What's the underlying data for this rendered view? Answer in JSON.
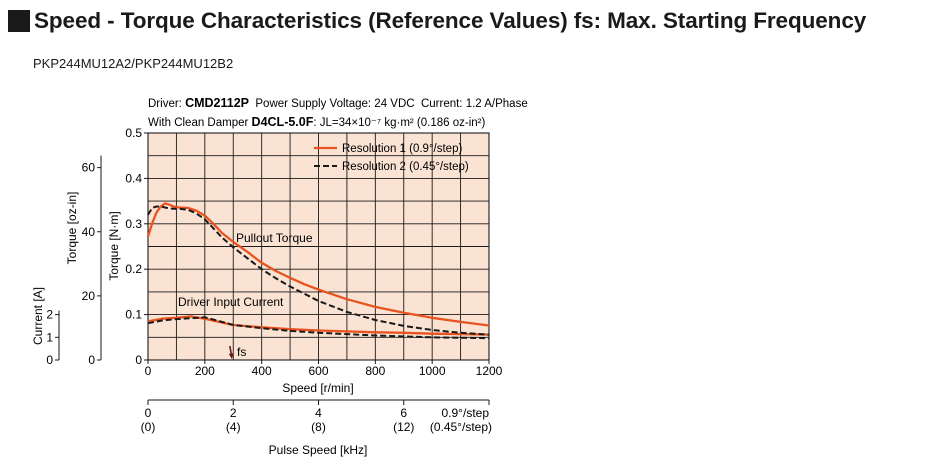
{
  "page": {
    "title": "Speed - Torque Characteristics (Reference Values) fs: Max. Starting Frequency",
    "model": "PKP244MU12A2/PKP244MU12B2"
  },
  "conditions": {
    "line1": {
      "driver_label": "Driver: ",
      "driver_model": "CMD2112P",
      "rest": "  Power Supply Voltage: 24 VDC  Current: 1.2 A/Phase"
    },
    "line2": {
      "prefix": "With Clean Damper ",
      "damper_model": "D4CL-5.0F",
      "rest": ": JL=34×10⁻⁷ kg·m² (0.186 oz-in²)"
    }
  },
  "colors": {
    "accent": "#e8531f",
    "plot_bg": "#fbe3d4",
    "grid": "#1a1a1a",
    "series2": "#1a1a1a"
  },
  "chart_data": {
    "type": "line",
    "x_label": "Speed [r/min]",
    "x_range": [
      0,
      1200
    ],
    "x_ticks": [
      0,
      200,
      400,
      600,
      800,
      1000,
      1200
    ],
    "x_minor_step": 100,
    "y_label": "Torque [N·m]",
    "y_range": [
      0,
      0.5
    ],
    "y_ticks": [
      0,
      0.1,
      0.2,
      0.3,
      0.4,
      0.5
    ],
    "y_tick_labels": [
      "0",
      "0.1",
      "0.2",
      "0.3",
      "0.4",
      "0.5"
    ],
    "y2_label": "Torque [oz-in]",
    "y2_ticks": [
      0,
      20,
      40,
      60
    ],
    "y2_units_per_nm": 141.6,
    "y3_label": "Current [A]",
    "y3_ticks": [
      0,
      1,
      2
    ],
    "y3_nm_per_amp": 0.05,
    "secondary_x_label": "Pulse Speed [kHz]",
    "secondary_x_ticks": [
      {
        "speed": 0,
        "label1": "0",
        "label2": "(0)"
      },
      {
        "speed": 300,
        "label1": "2",
        "label2": "(4)"
      },
      {
        "speed": 600,
        "label1": "4",
        "label2": "(8)"
      },
      {
        "speed": 900,
        "label1": "6",
        "label2": "(12)"
      }
    ],
    "secondary_x_unit_note": [
      "0.9°/step",
      "(0.45°/step)"
    ],
    "grid": true,
    "legend_position": "top-right",
    "annotations": [
      "Pullout Torque",
      "Driver Input Current",
      "fs"
    ],
    "series": [
      {
        "name": "Resolution 1 (0.9°/step)",
        "style": "solid",
        "pullout_torque": {
          "x": [
            0,
            15,
            30,
            45,
            60,
            75,
            90,
            110,
            140,
            170,
            200,
            230,
            260,
            300,
            350,
            400,
            450,
            500,
            550,
            600,
            700,
            800,
            900,
            1000,
            1100,
            1200
          ],
          "y": [
            0.272,
            0.302,
            0.325,
            0.338,
            0.345,
            0.342,
            0.338,
            0.336,
            0.335,
            0.329,
            0.318,
            0.3,
            0.28,
            0.26,
            0.238,
            0.214,
            0.196,
            0.181,
            0.167,
            0.155,
            0.134,
            0.117,
            0.104,
            0.093,
            0.084,
            0.076
          ]
        },
        "driver_input_current": {
          "x": [
            0,
            50,
            100,
            150,
            200,
            250,
            300,
            400,
            500,
            600,
            700,
            800,
            900,
            1000,
            1100,
            1200
          ],
          "y": [
            0.085,
            0.091,
            0.093,
            0.096,
            0.091,
            0.084,
            0.077,
            0.072,
            0.068,
            0.065,
            0.063,
            0.061,
            0.06,
            0.058,
            0.057,
            0.056
          ]
        }
      },
      {
        "name": "Resolution 2 (0.45°/step)",
        "style": "dashed",
        "pullout_torque": {
          "x": [
            0,
            15,
            30,
            45,
            60,
            75,
            90,
            110,
            140,
            170,
            200,
            230,
            260,
            300,
            350,
            400,
            450,
            500,
            550,
            600,
            700,
            800,
            900,
            1000,
            1100,
            1200
          ],
          "y": [
            0.32,
            0.335,
            0.338,
            0.338,
            0.336,
            0.334,
            0.333,
            0.333,
            0.331,
            0.323,
            0.31,
            0.29,
            0.27,
            0.248,
            0.224,
            0.2,
            0.18,
            0.162,
            0.146,
            0.13,
            0.106,
            0.088,
            0.075,
            0.066,
            0.06,
            0.056
          ]
        },
        "driver_input_current": {
          "x": [
            0,
            50,
            100,
            150,
            200,
            250,
            300,
            400,
            500,
            600,
            700,
            800,
            900,
            1000,
            1100,
            1200
          ],
          "y": [
            0.081,
            0.087,
            0.09,
            0.092,
            0.094,
            0.086,
            0.077,
            0.07,
            0.064,
            0.06,
            0.057,
            0.054,
            0.052,
            0.05,
            0.049,
            0.048
          ]
        }
      }
    ],
    "fs_marker": {
      "label": "fs",
      "speed": 295
    }
  }
}
